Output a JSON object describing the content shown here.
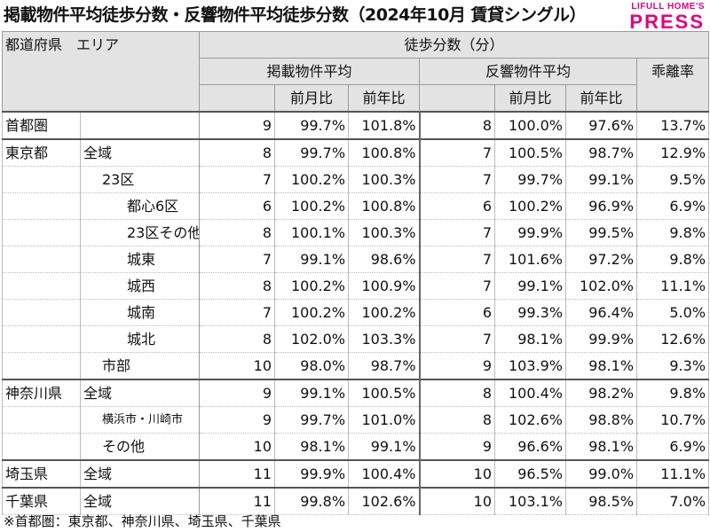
{
  "title": "掲載物件平均徒歩分数・反響物件平均徒歩分数（2024年10月 賃貸シングル）",
  "logo": {
    "line1": "LIFULL HOME'S",
    "line2": "PRESS"
  },
  "header": {
    "corner_pref": "都道府県",
    "corner_area": "エリア",
    "group": "徒歩分数（分）",
    "listed": "掲載物件平均",
    "response": "反響物件平均",
    "divergence": "乖離率",
    "mom": "前月比",
    "yoy": "前年比"
  },
  "rows": [
    {
      "pref": "首都圏",
      "area": "",
      "indent": 0,
      "sep": true,
      "l": "9",
      "lm": "99.7%",
      "ly": "101.8%",
      "r": "8",
      "rm": "100.0%",
      "ry": "97.6%",
      "d": "13.7%"
    },
    {
      "pref": "東京都",
      "area": "全域",
      "indent": 0,
      "sep": true,
      "l": "8",
      "lm": "99.7%",
      "ly": "100.8%",
      "r": "7",
      "rm": "100.5%",
      "ry": "98.7%",
      "d": "12.9%"
    },
    {
      "pref": "",
      "area": "23区",
      "indent": 1,
      "sep": false,
      "l": "7",
      "lm": "100.2%",
      "ly": "100.3%",
      "r": "7",
      "rm": "99.7%",
      "ry": "99.1%",
      "d": "9.5%"
    },
    {
      "pref": "",
      "area": "都心6区",
      "indent": 2,
      "sep": false,
      "l": "6",
      "lm": "100.2%",
      "ly": "100.8%",
      "r": "6",
      "rm": "100.2%",
      "ry": "96.9%",
      "d": "6.9%"
    },
    {
      "pref": "",
      "area": "23区その他",
      "indent": 2,
      "sep": false,
      "l": "8",
      "lm": "100.1%",
      "ly": "100.3%",
      "r": "7",
      "rm": "99.9%",
      "ry": "99.5%",
      "d": "9.8%"
    },
    {
      "pref": "",
      "area": "城東",
      "indent": 2,
      "sep": false,
      "l": "7",
      "lm": "99.1%",
      "ly": "98.6%",
      "r": "7",
      "rm": "101.6%",
      "ry": "97.2%",
      "d": "9.8%"
    },
    {
      "pref": "",
      "area": "城西",
      "indent": 2,
      "sep": false,
      "l": "8",
      "lm": "100.2%",
      "ly": "100.9%",
      "r": "7",
      "rm": "99.1%",
      "ry": "102.0%",
      "d": "11.1%"
    },
    {
      "pref": "",
      "area": "城南",
      "indent": 2,
      "sep": false,
      "l": "7",
      "lm": "100.2%",
      "ly": "100.2%",
      "r": "6",
      "rm": "99.3%",
      "ry": "96.4%",
      "d": "5.0%"
    },
    {
      "pref": "",
      "area": "城北",
      "indent": 2,
      "sep": false,
      "l": "8",
      "lm": "102.0%",
      "ly": "103.3%",
      "r": "7",
      "rm": "98.1%",
      "ry": "99.9%",
      "d": "12.6%"
    },
    {
      "pref": "",
      "area": "市部",
      "indent": 1,
      "sep": false,
      "l": "10",
      "lm": "98.0%",
      "ly": "98.7%",
      "r": "9",
      "rm": "103.9%",
      "ry": "98.1%",
      "d": "9.3%"
    },
    {
      "pref": "神奈川県",
      "area": "全域",
      "indent": 0,
      "sep": true,
      "l": "9",
      "lm": "99.1%",
      "ly": "100.5%",
      "r": "8",
      "rm": "100.4%",
      "ry": "98.2%",
      "d": "9.8%"
    },
    {
      "pref": "",
      "area": "横浜市・川崎市",
      "indent": 1,
      "sep": false,
      "small": true,
      "l": "9",
      "lm": "99.7%",
      "ly": "101.0%",
      "r": "8",
      "rm": "102.6%",
      "ry": "98.8%",
      "d": "10.7%"
    },
    {
      "pref": "",
      "area": "その他",
      "indent": 1,
      "sep": false,
      "l": "10",
      "lm": "98.1%",
      "ly": "99.1%",
      "r": "9",
      "rm": "96.6%",
      "ry": "98.1%",
      "d": "6.9%"
    },
    {
      "pref": "埼玉県",
      "area": "全域",
      "indent": 0,
      "sep": true,
      "l": "11",
      "lm": "99.9%",
      "ly": "100.4%",
      "r": "10",
      "rm": "96.5%",
      "ry": "99.0%",
      "d": "11.1%"
    },
    {
      "pref": "千葉県",
      "area": "全域",
      "indent": 0,
      "sep": true,
      "l": "11",
      "lm": "99.8%",
      "ly": "102.6%",
      "r": "10",
      "rm": "103.1%",
      "ry": "98.5%",
      "d": "7.0%"
    }
  ],
  "note": "※首都圏：東京都、神奈川県、埼玉県、千葉県"
}
